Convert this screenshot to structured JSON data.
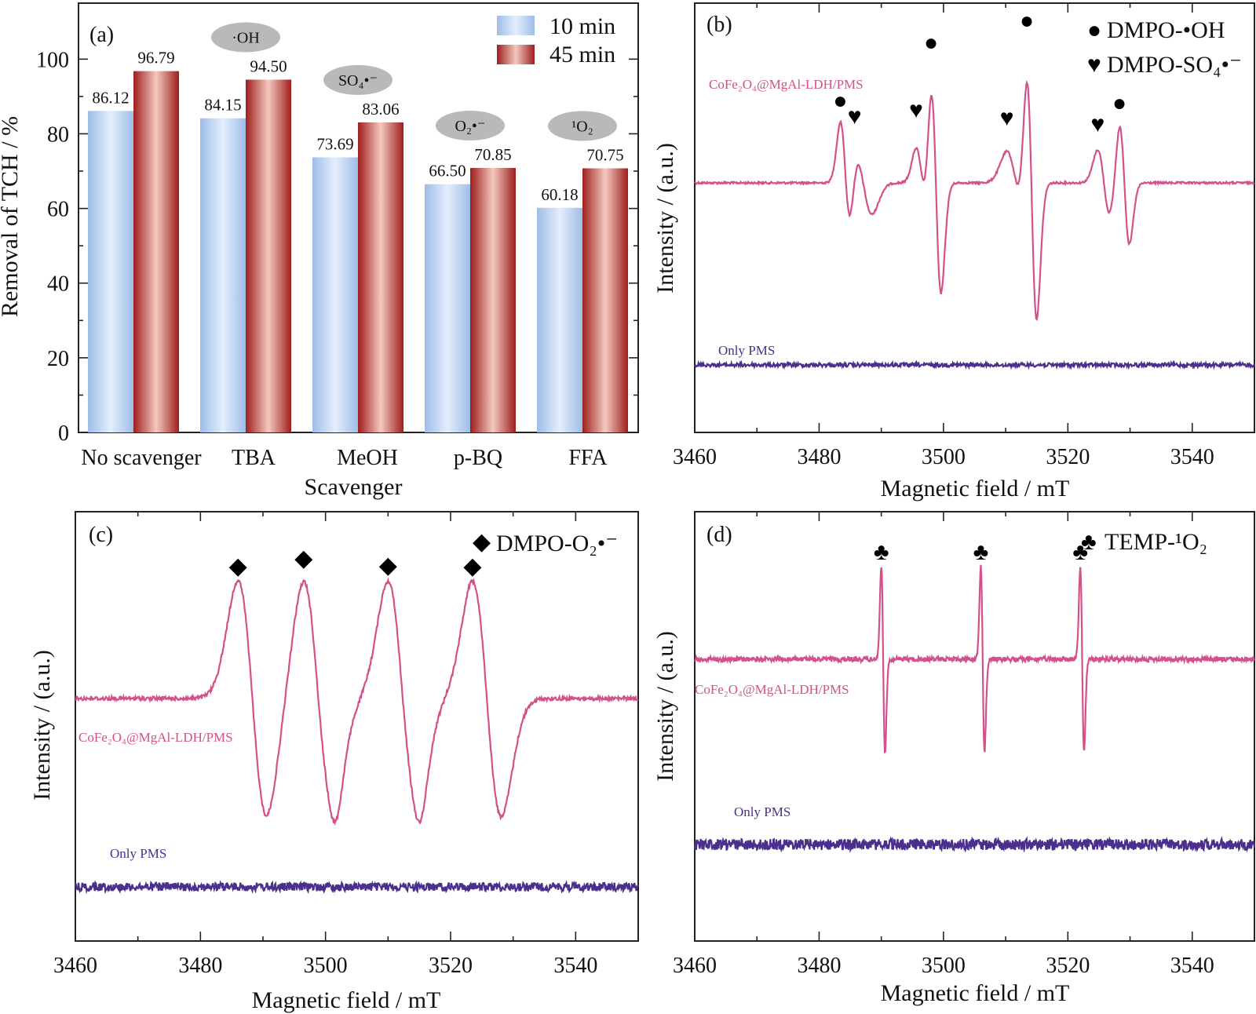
{
  "chart_data": [
    {
      "panel": "(a)",
      "type": "bar",
      "xlabel": "Scavenger",
      "ylabel": "Removal of TCH / %",
      "ylim": [
        0,
        115
      ],
      "yticks": [
        "0",
        "20",
        "40",
        "60",
        "80",
        "100"
      ],
      "categories": [
        "No scavenger",
        "TBA",
        "MeOH",
        "p-BQ",
        "FFA"
      ],
      "series": [
        {
          "name": "10 min",
          "values": [
            86.12,
            84.15,
            73.69,
            66.5,
            60.18
          ],
          "labels": [
            "86.12",
            "84.15",
            "73.69",
            "66.50",
            "60.18"
          ],
          "color": "#9dbde8"
        },
        {
          "name": "45 min",
          "values": [
            96.79,
            94.5,
            83.06,
            70.85,
            70.75
          ],
          "labels": [
            "96.79",
            "94.50",
            "83.06",
            "70.85",
            "70.75"
          ],
          "color": "#b22a28"
        }
      ],
      "species": [
        "",
        "·OH",
        "SO₄•⁻",
        "O₂•⁻",
        "¹O₂"
      ],
      "grid": false,
      "legend_position": "top-right"
    },
    {
      "panel": "(b)",
      "type": "line",
      "xlabel": "Magnetic field / mT",
      "ylabel": "Intensity / (a.u.)",
      "xlim": [
        3460,
        3550
      ],
      "xticks": [
        3460,
        3480,
        3500,
        3520,
        3540
      ],
      "traces": [
        {
          "name": "CoFe₂O₄@MgAl-LDH/PMS",
          "color": "#d3508a"
        },
        {
          "name": "Only PMS",
          "color": "#4b2f8c"
        }
      ],
      "legend": [
        {
          "symbol": "●",
          "text": "DMPO-•OH"
        },
        {
          "symbol": "♥",
          "text": "DMPO-SO₄•⁻"
        }
      ],
      "peaks_circle": [
        3483.4,
        3498.0,
        3513.4,
        3528.3
      ],
      "peaks_heart": [
        3485.7,
        3495.6,
        3510.2,
        3524.8
      ]
    },
    {
      "panel": "(c)",
      "type": "line",
      "xlabel": "Magnetic field / mT",
      "ylabel": "Intensity / (a.u.)",
      "xlim": [
        3460,
        3550
      ],
      "xticks": [
        3460,
        3480,
        3500,
        3520,
        3540
      ],
      "traces": [
        {
          "name": "CoFe₂O₄@MgAl-LDH/PMS",
          "color": "#d3508a"
        },
        {
          "name": "Only PMS",
          "color": "#4b2f8c"
        }
      ],
      "legend": [
        {
          "symbol": "◆",
          "text": "DMPO-O₂•⁻"
        }
      ],
      "peaks": [
        3486.0,
        3496.5,
        3510.0,
        3523.5
      ]
    },
    {
      "panel": "(d)",
      "type": "line",
      "xlabel": "Magnetic field / mT",
      "ylabel": "Intensity / (a.u.)",
      "xlim": [
        3460,
        3550
      ],
      "xticks": [
        3460,
        3480,
        3500,
        3520,
        3540
      ],
      "traces": [
        {
          "name": "CoFe₂O₄@MgAl-LDH/PMS",
          "color": "#d3508a"
        },
        {
          "name": "Only PMS",
          "color": "#4b2f8c"
        }
      ],
      "legend": [
        {
          "symbol": "♣",
          "text": "TEMP-¹O₂"
        }
      ],
      "peaks": [
        3490.0,
        3506.0,
        3522.0
      ]
    }
  ]
}
